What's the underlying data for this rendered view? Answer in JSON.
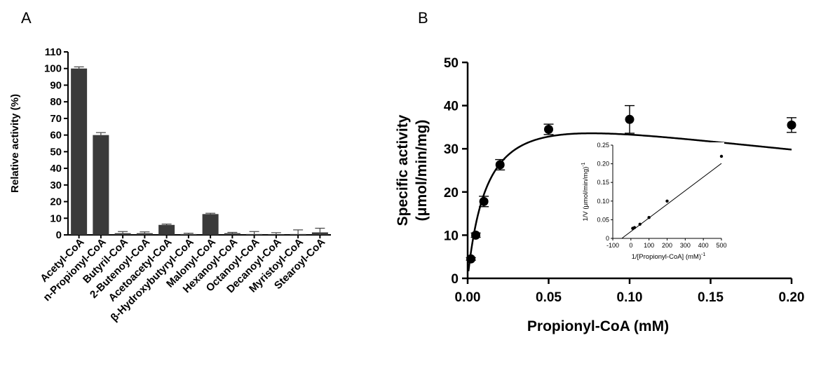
{
  "panels": {
    "a_letter": "A",
    "b_letter": "B"
  },
  "chart_data": [
    {
      "type": "bar",
      "panel": "A",
      "title": "",
      "xlabel": "",
      "ylabel": "Relative activity (%)",
      "ylim": [
        0,
        110
      ],
      "yticks": [
        "0",
        "10",
        "20",
        "30",
        "40",
        "50",
        "60",
        "70",
        "80",
        "90",
        "100",
        "110"
      ],
      "categories": [
        "Acetyl-CoA",
        "n-Propionyl-CoA",
        "Butyril-CoA",
        "2-Butenoyl-CoA",
        "Acetoacetyl-CoA",
        "β-Hydroxybutyryl-CoA",
        "Malonyl-CoA",
        "Hexanoyl-CoA",
        "Octanoyl-CoA",
        "Decanoyl-CoA",
        "Myristoyl-CoA",
        "Stearoyl-CoA"
      ],
      "values": [
        100,
        60,
        1,
        1,
        6,
        0.5,
        12.5,
        1,
        0.5,
        0.3,
        0.5,
        1.5
      ],
      "errors": [
        1,
        1.5,
        1,
        0.8,
        0.5,
        0.5,
        0.5,
        0.5,
        1.5,
        1,
        2.5,
        2.5
      ],
      "grid": false
    },
    {
      "type": "scatter",
      "panel": "B",
      "title": "",
      "xlabel": "Propionyl-CoA (mM)",
      "ylabel": "Specific activity (μmol/min/mg)",
      "ylabel_line1": "Specific activity",
      "ylabel_line2": "(μmol/min/mg)",
      "xlim": [
        0,
        0.2
      ],
      "ylim": [
        0,
        50
      ],
      "xticks": [
        "0.00",
        "0.05",
        "0.10",
        "0.15",
        "0.20"
      ],
      "yticks": [
        "0",
        "10",
        "20",
        "30",
        "40",
        "50"
      ],
      "x": [
        0.002,
        0.005,
        0.01,
        0.02,
        0.05,
        0.1,
        0.2
      ],
      "y": [
        4.5,
        10,
        17.8,
        26.3,
        34.5,
        36.8,
        35.5
      ],
      "errors": [
        0.3,
        0.5,
        1.2,
        1.2,
        1.2,
        3.2,
        1.7
      ],
      "fit_curve": "substrate-inhibition fit (smooth line)",
      "grid": false
    },
    {
      "type": "scatter",
      "panel": "B-inset",
      "title": "",
      "xlabel": "1/[Propionyl-CoA] (mM)",
      "xlabel_sup": "-1",
      "ylabel": "1/V (μmol/min/mg)",
      "ylabel_sup": "-1",
      "xlim": [
        -100,
        500
      ],
      "ylim": [
        0,
        0.25
      ],
      "xticks": [
        "-100",
        "0",
        "100",
        "200",
        "300",
        "400",
        "500"
      ],
      "yticks": [
        "0",
        "0.05",
        "0.10",
        "0.15",
        "0.20",
        "0.25"
      ],
      "x": [
        10,
        20,
        50,
        100,
        200,
        500
      ],
      "y": [
        0.027,
        0.029,
        0.038,
        0.056,
        0.1,
        0.22
      ],
      "line": {
        "x0": -50,
        "y0": 0.0,
        "x1": 500,
        "y1": 0.201
      },
      "grid": false
    }
  ]
}
